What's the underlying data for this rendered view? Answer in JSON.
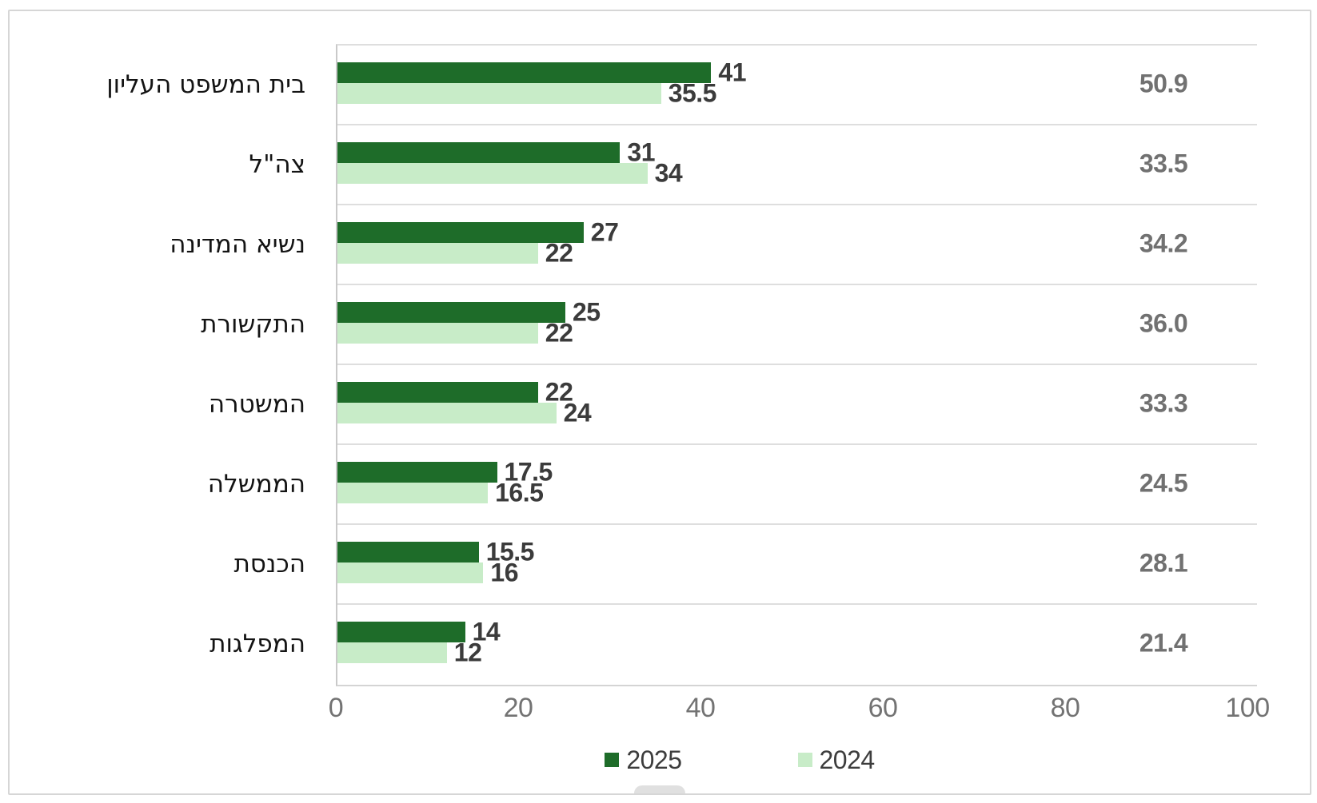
{
  "chart_data": {
    "type": "bar",
    "orientation": "horizontal",
    "categories": [
      "בית המשפט העליון",
      "צה\"ל",
      "נשיא המדינה",
      "התקשורת",
      "המשטרה",
      "הממשלה",
      "הכנסת",
      "המפלגות"
    ],
    "series": [
      {
        "name": "2025",
        "color": "#1e6c29",
        "values": [
          41,
          31,
          27,
          25,
          22,
          17.5,
          15.5,
          14
        ],
        "value_labels": [
          "41",
          "31",
          "27",
          "25",
          "22",
          "17.5",
          "15.5",
          "14"
        ]
      },
      {
        "name": "2024",
        "color": "#c8ecc8",
        "values": [
          35.5,
          34,
          22,
          22,
          24,
          16.5,
          16,
          12
        ],
        "value_labels": [
          "35.5",
          "34",
          "22",
          "22",
          "24",
          "16.5",
          "16",
          "12"
        ]
      }
    ],
    "side_values": [
      "50.9",
      "33.5",
      "34.2",
      "36.0",
      "33.3",
      "24.5",
      "28.1",
      "21.4"
    ],
    "xlabel": "",
    "ylabel": "",
    "title": "",
    "xlim": [
      0,
      100
    ],
    "x_ticks": [
      "0",
      "20",
      "40",
      "60",
      "80",
      "100"
    ],
    "legend": [
      {
        "label": "2025",
        "color": "#1e6c29"
      },
      {
        "label": "2024",
        "color": "#c8ecc8"
      }
    ],
    "legend_position": "bottom-center",
    "grid": "row-separators",
    "colors": {
      "bar_value_label": "#3b3b3b",
      "side_value": "#717171",
      "axis_tick": "#737373",
      "category_label": "#141414",
      "separator_line": "#dedede",
      "axis_line": "#c9c9c9",
      "frame_border": "#d6d6d6",
      "background": "#ffffff"
    }
  }
}
